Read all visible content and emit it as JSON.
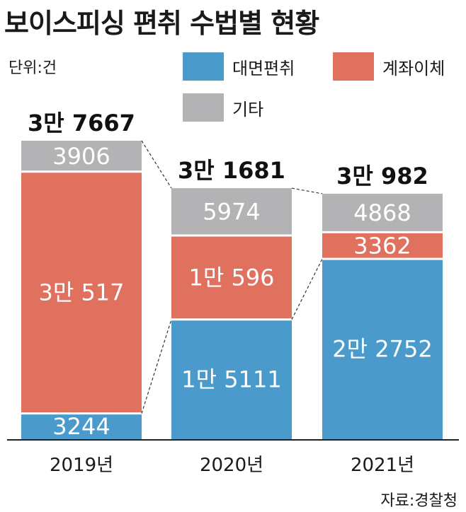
{
  "title": "보이스피싱 편취 수법별 현황",
  "unit": "단위:건",
  "source": "자료:경찰청",
  "colors": {
    "face_to_face": "#4a9acb",
    "account_transfer": "#e0715f",
    "other": "#b3b3b5"
  },
  "chart_data": {
    "type": "bar",
    "stacked": true,
    "categories": [
      "2019년",
      "2020년",
      "2021년"
    ],
    "series": [
      {
        "name": "대면편취",
        "values": [
          3244,
          15111,
          22752
        ],
        "labels": [
          "3244",
          "1만 5111",
          "2만 2752"
        ]
      },
      {
        "name": "계좌이체",
        "values": [
          30517,
          10596,
          3362
        ],
        "labels": [
          "3만 517",
          "1만 596",
          "3362"
        ]
      },
      {
        "name": "기타",
        "values": [
          3906,
          5974,
          4868
        ],
        "labels": [
          "3906",
          "5974",
          "4868"
        ]
      }
    ],
    "totals": [
      37667,
      31681,
      30982
    ],
    "total_labels": [
      "3만 7667",
      "3만 1681",
      "3만 982"
    ],
    "ylim": [
      0,
      37667
    ],
    "grid": false,
    "legend": "top-right"
  }
}
